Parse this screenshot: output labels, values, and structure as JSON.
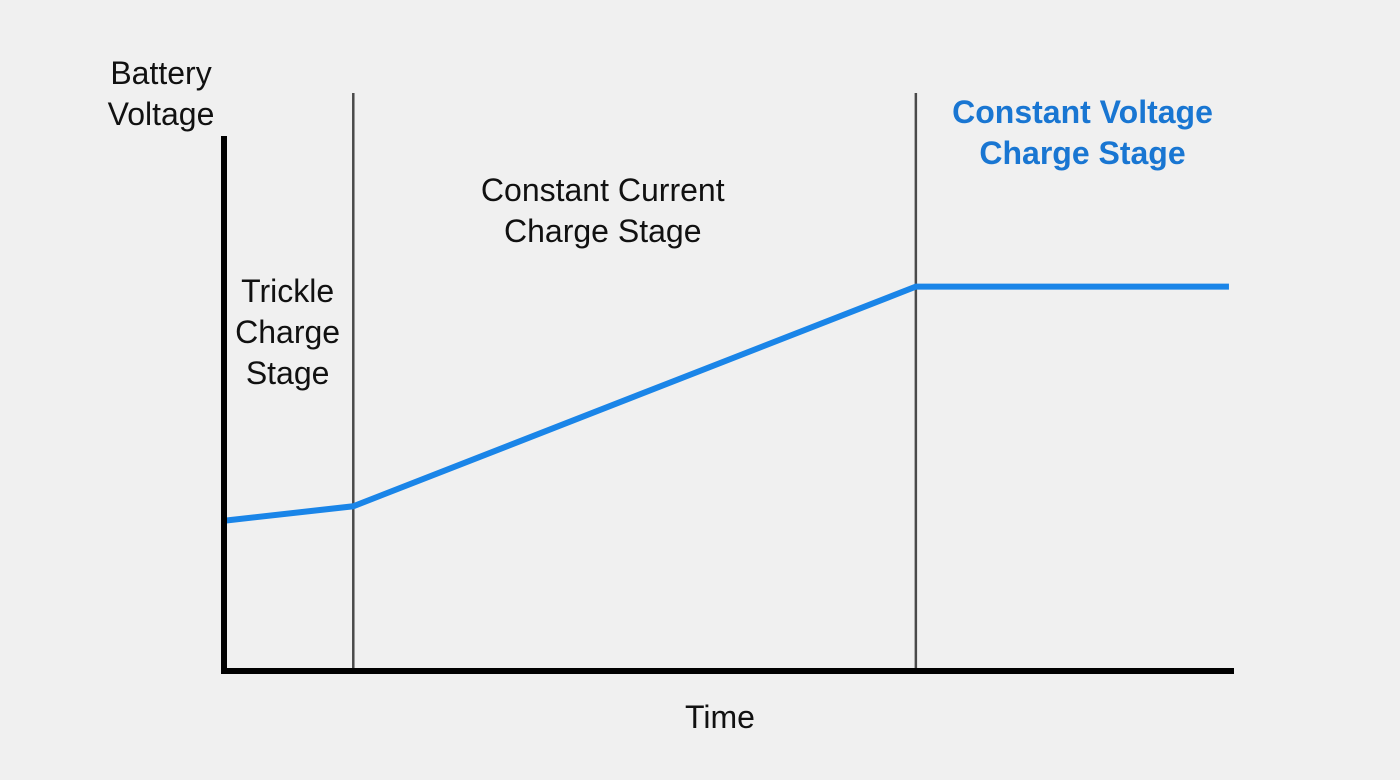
{
  "chart_data": {
    "type": "line",
    "title": "",
    "xlabel": "Time",
    "ylabel_lines": [
      "Battery",
      "Voltage"
    ],
    "xlim": [
      0,
      100
    ],
    "ylim": [
      0,
      100
    ],
    "grid": false,
    "series": [
      {
        "color": "#1a85e8",
        "points": [
          {
            "x": 0,
            "y": 26
          },
          {
            "x": 12.8,
            "y": 28.5
          },
          {
            "x": 68.5,
            "y": 66.5
          },
          {
            "x": 99.5,
            "y": 66.5
          }
        ]
      }
    ],
    "stage_dividers": [
      {
        "x": 12.8
      },
      {
        "x": 68.5
      }
    ],
    "stages": [
      {
        "lines": [
          "Trickle",
          "Charge",
          "Stage"
        ],
        "color": "#111111",
        "bold": false,
        "anchor_x": 6.3,
        "top_y": 68.0
      },
      {
        "lines": [
          "Constant Current",
          "Charge Stage"
        ],
        "color": "#111111",
        "bold": false,
        "anchor_x": 37.5,
        "top_y": 85.5
      },
      {
        "lines": [
          "Constant Voltage",
          "Charge Stage"
        ],
        "color": "#1976d2",
        "bold": true,
        "anchor_x": 85.0,
        "top_y": 99.0
      }
    ],
    "axis_color": "#000000",
    "divider_color": "#4a4a4a"
  }
}
